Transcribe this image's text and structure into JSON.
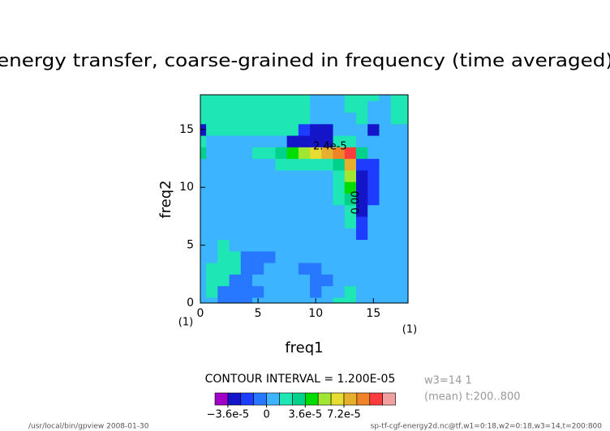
{
  "chart_data": {
    "type": "contourf",
    "title": "energy transfer, coarse-grained in frequency (time averaged)",
    "xlabel": "freq1",
    "ylabel": "freq2",
    "x_unit": "(1)",
    "y_unit": "(1)",
    "x": [
      0,
      1,
      2,
      3,
      4,
      5,
      6,
      7,
      8,
      9,
      10,
      11,
      12,
      13,
      14,
      15,
      16,
      17,
      18
    ],
    "y": [
      0,
      1,
      2,
      3,
      4,
      5,
      6,
      7,
      8,
      9,
      10,
      11,
      12,
      13,
      14,
      15,
      16,
      17,
      18
    ],
    "xlim": [
      0,
      18
    ],
    "ylim": [
      0,
      18
    ],
    "xticks": [
      0,
      5,
      10,
      15
    ],
    "yticks": [
      0,
      5,
      10,
      15
    ],
    "levels": [
      -3.6e-05,
      -2.4e-05,
      -1.2e-05,
      0,
      1.2e-05,
      2.4e-05,
      3.6e-05,
      4.8e-05,
      6e-05,
      7.2e-05,
      8.4e-05,
      9.6e-05,
      0.000108
    ],
    "colors": [
      "#a000c8",
      "#1414c8",
      "#1e3cff",
      "#2878ff",
      "#3cb4ff",
      "#1ee6b4",
      "#00d28c",
      "#00dc00",
      "#a0e632",
      "#e6dc32",
      "#e6af2d",
      "#f08228",
      "#fa3c3c",
      "#f0a0a0"
    ],
    "colorbar_ticks": [
      {
        "value": -3.6e-05,
        "label": "−3.6e-5"
      },
      0,
      {
        "value": 3.6e-05,
        "label": "3.6e-5"
      },
      {
        "value": 7.2e-05,
        "label": "7.2e-5"
      }
    ],
    "contour_labels": [
      {
        "value": 2.4e-05,
        "label": "2.4e-5"
      },
      {
        "value": 0,
        "label": "0.00"
      }
    ],
    "contour_interval": "CONTOUR INTERVAL = 1.200E-05",
    "info_lines": [
      "w3=14 1",
      "(mean) t:200..800"
    ],
    "footer_left": "/usr/local/bin/gpview  2008-01-30",
    "footer_right": "sp-tf-cgf-energy2d.nc@tf,w1=0:18,w2=0:18,w3=14,t=200:800",
    "z": [
      [
        6e-06,
        6e-06,
        -6e-06,
        -6e-06,
        -6e-06,
        6e-06,
        6e-06,
        6e-06,
        6e-06,
        6e-06,
        6e-06,
        6e-06,
        1.8e-05,
        1.8e-05,
        6e-06,
        6e-06,
        6e-06,
        6e-06,
        6e-06
      ],
      [
        6e-06,
        1.8e-05,
        -6e-06,
        -6e-06,
        -6e-06,
        -6e-06,
        6e-06,
        6e-06,
        6e-06,
        6e-06,
        -6e-06,
        6e-06,
        6e-06,
        1.8e-05,
        6e-06,
        6e-06,
        6e-06,
        6e-06,
        6e-06
      ],
      [
        6e-06,
        1.8e-05,
        1.8e-05,
        -6e-06,
        -6e-06,
        6e-06,
        6e-06,
        6e-06,
        6e-06,
        6e-06,
        -6e-06,
        -6e-06,
        6e-06,
        6e-06,
        6e-06,
        6e-06,
        6e-06,
        6e-06,
        6e-06
      ],
      [
        6e-06,
        1.8e-05,
        1.8e-05,
        1.8e-05,
        -6e-06,
        -6e-06,
        6e-06,
        6e-06,
        6e-06,
        -6e-06,
        -6e-06,
        6e-06,
        6e-06,
        6e-06,
        6e-06,
        6e-06,
        6e-06,
        6e-06,
        6e-06
      ],
      [
        6e-06,
        6e-06,
        1.8e-05,
        1.8e-05,
        -6e-06,
        -6e-06,
        -6e-06,
        6e-06,
        6e-06,
        6e-06,
        6e-06,
        6e-06,
        6e-06,
        6e-06,
        6e-06,
        6e-06,
        6e-06,
        6e-06,
        6e-06
      ],
      [
        6e-06,
        6e-06,
        1.8e-05,
        6e-06,
        6e-06,
        6e-06,
        6e-06,
        6e-06,
        6e-06,
        6e-06,
        6e-06,
        6e-06,
        6e-06,
        6e-06,
        6e-06,
        6e-06,
        6e-06,
        6e-06,
        6e-06
      ],
      [
        6e-06,
        6e-06,
        6e-06,
        6e-06,
        6e-06,
        6e-06,
        6e-06,
        6e-06,
        6e-06,
        6e-06,
        6e-06,
        6e-06,
        6e-06,
        6e-06,
        -1.8e-05,
        6e-06,
        6e-06,
        6e-06,
        6e-06
      ],
      [
        6e-06,
        6e-06,
        6e-06,
        6e-06,
        6e-06,
        6e-06,
        6e-06,
        6e-06,
        6e-06,
        6e-06,
        6e-06,
        6e-06,
        6e-06,
        1.8e-05,
        -1.8e-05,
        6e-06,
        6e-06,
        6e-06,
        6e-06
      ],
      [
        6e-06,
        6e-06,
        6e-06,
        6e-06,
        6e-06,
        6e-06,
        6e-06,
        6e-06,
        6e-06,
        6e-06,
        6e-06,
        6e-06,
        6e-06,
        1.8e-05,
        -3e-05,
        6e-06,
        6e-06,
        6e-06,
        6e-06
      ],
      [
        6e-06,
        6e-06,
        6e-06,
        6e-06,
        6e-06,
        6e-06,
        6e-06,
        6e-06,
        6e-06,
        6e-06,
        6e-06,
        6e-06,
        1.8e-05,
        3e-05,
        -3e-05,
        -1.8e-05,
        6e-06,
        6e-06,
        6e-06
      ],
      [
        6e-06,
        6e-06,
        6e-06,
        6e-06,
        6e-06,
        6e-06,
        6e-06,
        6e-06,
        6e-06,
        6e-06,
        6e-06,
        6e-06,
        1.8e-05,
        4.2e-05,
        -3e-05,
        -1.8e-05,
        6e-06,
        6e-06,
        6e-06
      ],
      [
        6e-06,
        6e-06,
        6e-06,
        6e-06,
        6e-06,
        6e-06,
        6e-06,
        6e-06,
        6e-06,
        6e-06,
        6e-06,
        6e-06,
        1.8e-05,
        5.4e-05,
        -3e-05,
        -1.8e-05,
        6e-06,
        6e-06,
        6e-06
      ],
      [
        6e-06,
        6e-06,
        6e-06,
        6e-06,
        6e-06,
        6e-06,
        6e-06,
        1.8e-05,
        1.8e-05,
        1.8e-05,
        1.8e-05,
        1.8e-05,
        3e-05,
        7.8e-05,
        -1.8e-05,
        -1.8e-05,
        6e-06,
        6e-06,
        6e-06
      ],
      [
        3e-05,
        6e-06,
        6e-06,
        6e-06,
        6e-06,
        1.8e-05,
        1.8e-05,
        3e-05,
        4.2e-05,
        5.4e-05,
        6.6e-05,
        7.8e-05,
        9e-05,
        0.0001,
        3e-05,
        6e-06,
        6e-06,
        6e-06,
        6e-06
      ],
      [
        1.8e-05,
        6e-06,
        6e-06,
        6e-06,
        6e-06,
        6e-06,
        6e-06,
        6e-06,
        -3e-05,
        -3e-05,
        -3e-05,
        -3e-05,
        1.8e-05,
        1.8e-05,
        6e-06,
        6e-06,
        6e-06,
        6e-06,
        6e-06
      ],
      [
        -3e-05,
        1.8e-05,
        1.8e-05,
        1.8e-05,
        1.8e-05,
        1.8e-05,
        1.8e-05,
        1.8e-05,
        1.8e-05,
        -1.8e-05,
        -3e-05,
        -3e-05,
        6e-06,
        6e-06,
        6e-06,
        -3e-05,
        6e-06,
        6e-06,
        6e-06
      ],
      [
        1.8e-05,
        1.8e-05,
        1.8e-05,
        1.8e-05,
        1.8e-05,
        1.8e-05,
        1.8e-05,
        1.8e-05,
        1.8e-05,
        1.8e-05,
        6e-06,
        6e-06,
        6e-06,
        6e-06,
        1.8e-05,
        6e-06,
        6e-06,
        1.8e-05,
        1.8e-05
      ],
      [
        1.8e-05,
        1.8e-05,
        1.8e-05,
        1.8e-05,
        1.8e-05,
        1.8e-05,
        1.8e-05,
        1.8e-05,
        1.8e-05,
        1.8e-05,
        6e-06,
        6e-06,
        6e-06,
        1.8e-05,
        1.8e-05,
        6e-06,
        6e-06,
        1.8e-05,
        1.8e-05
      ],
      [
        1.8e-05,
        1.8e-05,
        1.8e-05,
        1.8e-05,
        1.8e-05,
        1.8e-05,
        1.8e-05,
        1.8e-05,
        1.8e-05,
        1.8e-05,
        6e-06,
        6e-06,
        6e-06,
        1.8e-05,
        1.8e-05,
        1.8e-05,
        6e-06,
        1.8e-05,
        1.8e-05
      ]
    ]
  }
}
